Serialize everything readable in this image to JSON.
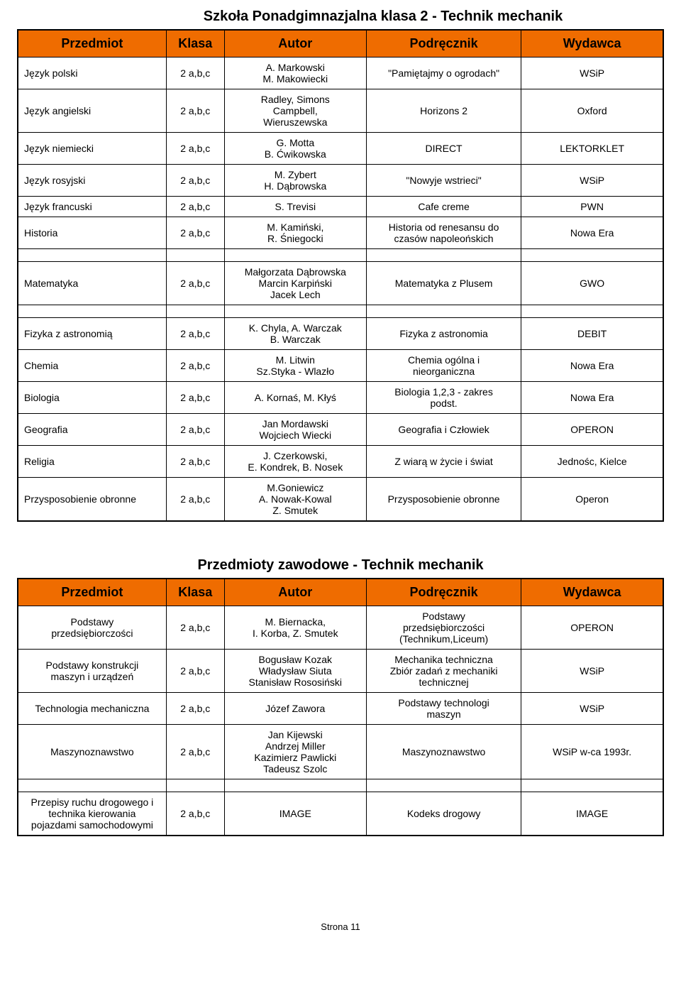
{
  "mainTitle": "Szkoła Ponadgimnazjalna klasa 2 - Technik mechanik",
  "subTitle": "Przedmioty zawodowe - Technik mechanik",
  "headerBg": "#ef6c00",
  "headers": {
    "subject": "Przedmiot",
    "class": "Klasa",
    "author": "Autor",
    "book": "Podręcznik",
    "publisher": "Wydawca"
  },
  "table1": {
    "rows": [
      {
        "subject": "Język polski",
        "class": "2 a,b,c",
        "author": "A. Markowski\nM. Makowiecki",
        "book": "\"Pamiętajmy o ogrodach\"",
        "publisher": "WSiP"
      },
      {
        "subject": "Język angielski",
        "class": "2 a,b,c",
        "author": "Radley, Simons\nCampbell,\nWieruszewska",
        "book": "Horizons 2",
        "publisher": "Oxford"
      },
      {
        "subject": "Język niemiecki",
        "class": "2 a,b,c",
        "author": "G. Motta\nB. Ćwikowska",
        "book": "DIRECT",
        "publisher": "LEKTORKLET"
      },
      {
        "subject": "Język rosyjski",
        "class": "2 a,b,c",
        "author": "M. Zybert\nH. Dąbrowska",
        "book": "\"Nowyje wstrieci\"",
        "publisher": "WSiP"
      },
      {
        "subject": "Język francuski",
        "class": "2 a,b,c",
        "author": "S. Trevisi",
        "book": "Cafe creme",
        "publisher": "PWN"
      },
      {
        "subject": "Historia",
        "class": "2 a,b,c",
        "author": "M. Kamiński,\nR. Śniegocki",
        "book": "Historia od renesansu do\nczasów napoleońskich",
        "publisher": "Nowa Era"
      },
      {
        "spacer": true
      },
      {
        "subject": "Matematyka",
        "class": "2 a,b,c",
        "author": "Małgorzata Dąbrowska\nMarcin Karpiński\nJacek Lech",
        "book": "Matematyka z Plusem",
        "publisher": "GWO"
      },
      {
        "spacer": true
      },
      {
        "subject": "Fizyka z astronomią",
        "class": "2 a,b,c",
        "author": "K. Chyla, A. Warczak\nB. Warczak",
        "book": "Fizyka z astronomia",
        "publisher": "DEBIT"
      },
      {
        "subject": "Chemia",
        "class": "2 a,b,c",
        "author": "M. Litwin\nSz.Styka - Wlazło",
        "book": "Chemia ogólna i\nnieorganiczna",
        "publisher": "Nowa Era"
      },
      {
        "subject": "Biologia",
        "class": "2 a,b,c",
        "author": "A. Kornaś, M. Kłyś",
        "book": "Biologia 1,2,3 - zakres\npodst.",
        "publisher": "Nowa Era"
      },
      {
        "subject": "Geografia",
        "class": "2 a,b,c",
        "author": "Jan Mordawski\nWojciech Wiecki",
        "book": "Geografia i Człowiek",
        "publisher": "OPERON"
      },
      {
        "subject": "Religia",
        "class": "2 a,b,c",
        "author": "J. Czerkowski,\nE. Kondrek, B. Nosek",
        "book": "Z wiarą w życie i świat",
        "publisher": "Jednośc, Kielce"
      },
      {
        "subject": "Przysposobienie obronne",
        "class": "2 a,b,c",
        "author": "M.Goniewicz\nA. Nowak-Kowal\nZ. Smutek",
        "book": "Przysposobienie obronne",
        "publisher": "Operon"
      }
    ]
  },
  "table2": {
    "rows": [
      {
        "subject": "Podstawy\nprzedsiębiorczości",
        "class": "2 a,b,c",
        "author": "M. Biernacka,\nI. Korba, Z. Smutek",
        "book": "Podstawy\nprzedsiębiorczości\n(Technikum,Liceum)",
        "publisher": "OPERON"
      },
      {
        "subject": "Podstawy konstrukcji\nmaszyn i urządzeń",
        "class": "2 a,b,c",
        "author": "Bogusław Kozak\nWładysław Siuta\nStanisław Rososiński",
        "book": "Mechanika techniczna\nZbiór zadań z mechaniki\ntechnicznej",
        "publisher": "WSiP"
      },
      {
        "subject": "Technologia mechaniczna",
        "class": "2 a,b,c",
        "author": "Józef Zawora",
        "book": "Podstawy technologi\nmaszyn",
        "publisher": "WSiP"
      },
      {
        "subject": "Maszynoznawstwo",
        "class": "2 a,b,c",
        "author": "Jan Kijewski\nAndrzej Miller\nKazimierz Pawlicki\nTadeusz Szolc",
        "book": "Maszynoznawstwo",
        "publisher": "WSiP w-ca 1993r."
      },
      {
        "spacer": true
      },
      {
        "subject": "Przepisy ruchu drogowego i\ntechnika kierowania\npojazdami samochodowymi",
        "class": "2 a,b,c",
        "author": "IMAGE",
        "book": "Kodeks drogowy",
        "publisher": "IMAGE"
      }
    ]
  },
  "footer": "Strona 11"
}
